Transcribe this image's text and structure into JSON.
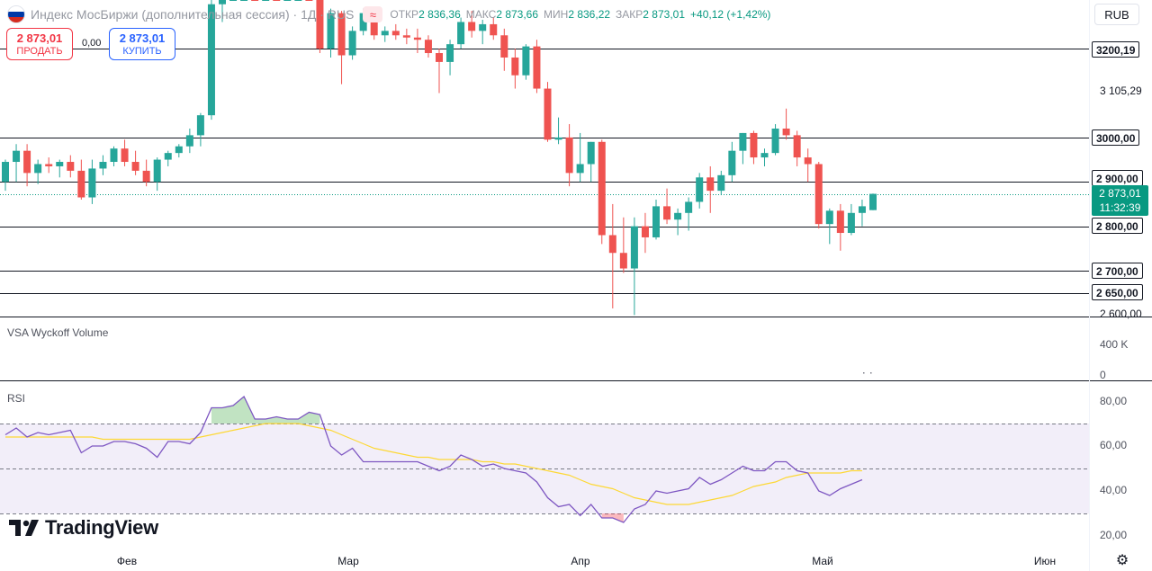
{
  "header": {
    "symbol": "Индекс МосБиржи (дополнительная сессия) · 1Д · RUS",
    "ohlc": [
      {
        "label": "ОТКР",
        "value": "2 836,36"
      },
      {
        "label": "МАКС",
        "value": "2 873,66"
      },
      {
        "label": "МИН",
        "value": "2 836,22"
      },
      {
        "label": "ЗАКР",
        "value": "2 873,01"
      }
    ],
    "change": "+40,12 (+1,42%)",
    "currency": "RUB"
  },
  "trade": {
    "sell_price": "2 873,01",
    "sell_label": "ПРОДАТЬ",
    "spread": "0,00",
    "buy_price": "2 873,01",
    "buy_label": "КУПИТЬ"
  },
  "current_price": {
    "value": "2 873,01",
    "countdown": "11:32:39"
  },
  "price_axis": {
    "level_labels": [
      "3200,19",
      "3000,00",
      "2 900,00",
      "2 800,00",
      "2 700,00",
      "2 650,00"
    ],
    "plain_labels": [
      "3 105,29",
      "2 600,00"
    ]
  },
  "panes": {
    "volume_title": "VSA Wyckoff Volume",
    "volume_ticks": [
      "400 K",
      "0"
    ],
    "rsi_title": "RSI",
    "rsi_ticks": [
      "80,00",
      "60,00",
      "40,00",
      "20,00"
    ]
  },
  "time_axis": {
    "labels": [
      "Фев",
      "Мар",
      "Апр",
      "Май",
      "Июн"
    ]
  },
  "brand": "TradingView",
  "colors": {
    "up": "#26a69a",
    "down": "#ef5350",
    "rsi": "#7e57c2",
    "rsi_ma": "#fdd835"
  },
  "chart_data": {
    "type": "candlestick",
    "price_scale": "linear",
    "horizontal_levels": [
      3200.19,
      3000,
      2900,
      2800,
      2700,
      2650
    ],
    "current": 2873.01,
    "candles": [
      [
        2900,
        2950,
        2880,
        2945
      ],
      [
        2945,
        2985,
        2900,
        2970
      ],
      [
        2970,
        2985,
        2890,
        2920
      ],
      [
        2920,
        2950,
        2895,
        2940
      ],
      [
        2940,
        2955,
        2920,
        2935
      ],
      [
        2935,
        2950,
        2910,
        2945
      ],
      [
        2945,
        2960,
        2910,
        2925
      ],
      [
        2925,
        2950,
        2860,
        2865
      ],
      [
        2865,
        2950,
        2850,
        2930
      ],
      [
        2930,
        2960,
        2915,
        2945
      ],
      [
        2945,
        2980,
        2935,
        2975
      ],
      [
        2975,
        2995,
        2935,
        2945
      ],
      [
        2945,
        2970,
        2915,
        2925
      ],
      [
        2925,
        2950,
        2890,
        2900
      ],
      [
        2900,
        2955,
        2880,
        2950
      ],
      [
        2950,
        2970,
        2935,
        2965
      ],
      [
        2965,
        2985,
        2955,
        2980
      ],
      [
        2980,
        3020,
        2965,
        3005
      ],
      [
        3005,
        3055,
        2980,
        3050
      ],
      [
        3050,
        3310,
        3040,
        3300
      ],
      [
        3300,
        3400,
        3260,
        3370
      ],
      [
        3370,
        3450,
        3355,
        3440
      ],
      [
        3440,
        3470,
        3400,
        3445
      ],
      [
        3445,
        3480,
        3340,
        3365
      ],
      [
        3365,
        3420,
        3350,
        3410
      ],
      [
        3410,
        3430,
        3375,
        3395
      ],
      [
        3395,
        3420,
        3385,
        3410
      ],
      [
        3410,
        3470,
        3395,
        3430
      ],
      [
        3430,
        3440,
        3320,
        3330
      ],
      [
        3330,
        3340,
        3190,
        3200
      ],
      [
        3200,
        3290,
        3180,
        3280
      ],
      [
        3280,
        3285,
        3120,
        3185
      ],
      [
        3185,
        3250,
        3175,
        3240
      ],
      [
        3240,
        3290,
        3230,
        3280
      ],
      [
        3280,
        3290,
        3220,
        3230
      ],
      [
        3230,
        3250,
        3215,
        3240
      ],
      [
        3240,
        3255,
        3220,
        3230
      ],
      [
        3230,
        3245,
        3210,
        3225
      ],
      [
        3225,
        3245,
        3190,
        3220
      ],
      [
        3220,
        3230,
        3180,
        3190
      ],
      [
        3190,
        3200,
        3100,
        3170
      ],
      [
        3170,
        3220,
        3140,
        3210
      ],
      [
        3210,
        3270,
        3200,
        3260
      ],
      [
        3260,
        3285,
        3225,
        3240
      ],
      [
        3240,
        3265,
        3210,
        3255
      ],
      [
        3255,
        3270,
        3220,
        3230
      ],
      [
        3230,
        3245,
        3150,
        3180
      ],
      [
        3180,
        3200,
        3110,
        3140
      ],
      [
        3140,
        3210,
        3130,
        3205
      ],
      [
        3205,
        3220,
        3100,
        3110
      ],
      [
        3110,
        3125,
        2990,
        2995
      ],
      [
        2995,
        3045,
        2985,
        3000
      ],
      [
        3000,
        3030,
        2890,
        2920
      ],
      [
        2920,
        3010,
        2900,
        2940
      ],
      [
        2940,
        2990,
        2900,
        2990
      ],
      [
        2990,
        2995,
        2760,
        2780
      ],
      [
        2780,
        2850,
        2615,
        2740
      ],
      [
        2740,
        2820,
        2695,
        2705
      ],
      [
        2705,
        2820,
        2600,
        2800
      ],
      [
        2800,
        2830,
        2740,
        2775
      ],
      [
        2775,
        2860,
        2770,
        2845
      ],
      [
        2845,
        2885,
        2805,
        2815
      ],
      [
        2815,
        2840,
        2780,
        2830
      ],
      [
        2830,
        2865,
        2790,
        2855
      ],
      [
        2855,
        2920,
        2840,
        2910
      ],
      [
        2910,
        2935,
        2830,
        2880
      ],
      [
        2880,
        2925,
        2870,
        2915
      ],
      [
        2915,
        2990,
        2900,
        2970
      ],
      [
        2970,
        3010,
        2940,
        3010
      ],
      [
        3010,
        3015,
        2940,
        2955
      ],
      [
        2955,
        2975,
        2935,
        2965
      ],
      [
        2965,
        3030,
        2960,
        3020
      ],
      [
        3020,
        3065,
        2995,
        3005
      ],
      [
        3005,
        3015,
        2935,
        2955
      ],
      [
        2955,
        2975,
        2900,
        2940
      ],
      [
        2940,
        2945,
        2795,
        2805
      ],
      [
        2805,
        2840,
        2760,
        2835
      ],
      [
        2835,
        2850,
        2745,
        2785
      ],
      [
        2785,
        2850,
        2780,
        2830
      ],
      [
        2830,
        2860,
        2800,
        2845
      ],
      [
        2836.36,
        2873.66,
        2836.22,
        2873.01
      ]
    ],
    "volume": {
      "ticks": [
        0,
        400000
      ]
    },
    "rsi": {
      "range": [
        20,
        80
      ],
      "bands": [
        30,
        50,
        70
      ],
      "values": [
        65,
        68,
        64,
        66,
        65,
        66,
        67,
        57,
        60,
        60,
        62,
        62,
        61,
        59,
        55,
        62,
        62,
        61,
        66,
        77,
        77,
        78,
        82,
        72,
        72,
        73,
        72,
        72,
        75,
        74,
        60,
        56,
        59,
        53,
        53,
        53,
        53,
        53,
        53,
        51,
        49,
        51,
        56,
        54,
        51,
        52,
        50,
        49,
        48,
        44,
        37,
        33,
        34,
        29,
        34,
        28,
        28,
        26,
        32,
        34,
        40,
        39,
        40,
        41,
        46,
        43,
        45,
        48,
        51,
        49,
        49,
        53,
        53,
        49,
        48,
        40,
        38,
        41,
        43,
        45
      ],
      "ma": [
        64,
        64,
        64,
        64,
        64,
        64,
        64,
        64,
        64,
        63,
        63,
        63,
        63,
        63,
        63,
        63,
        63,
        63,
        64,
        65,
        66,
        67,
        68,
        69,
        70,
        70,
        70,
        70,
        69,
        68,
        67,
        65,
        63,
        61,
        59,
        58,
        57,
        56,
        55,
        55,
        54,
        54,
        54,
        54,
        53,
        53,
        52,
        52,
        51,
        50,
        49,
        48,
        47,
        45,
        43,
        42,
        41,
        39,
        37,
        36,
        35,
        34,
        34,
        34,
        35,
        36,
        37,
        38,
        40,
        42,
        43,
        44,
        46,
        47,
        48,
        48,
        48,
        48,
        49,
        49
      ]
    }
  }
}
